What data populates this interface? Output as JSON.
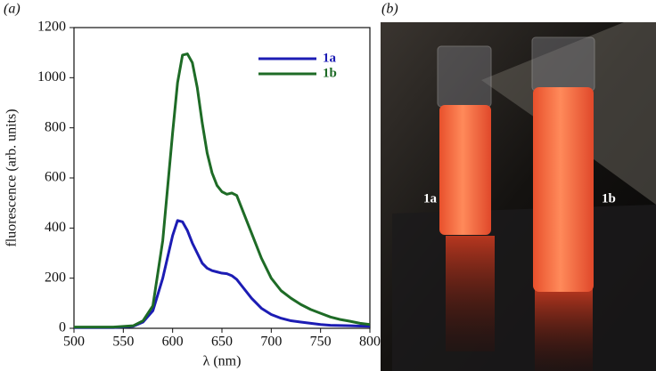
{
  "panels": {
    "a": "(a)",
    "b": "(b)"
  },
  "chart_data": {
    "type": "line",
    "xlabel": "λ (nm)",
    "ylabel": "fluorescence (arb. units)",
    "x": [
      500,
      540,
      560,
      570,
      580,
      590,
      600,
      605,
      610,
      615,
      620,
      625,
      630,
      635,
      640,
      645,
      650,
      655,
      660,
      665,
      670,
      680,
      690,
      700,
      710,
      720,
      730,
      740,
      750,
      760,
      770,
      780,
      790,
      800
    ],
    "series": [
      {
        "name": "1a",
        "color": "#1c1cb4",
        "values": [
          3,
          3,
          8,
          25,
          70,
          200,
          370,
          430,
          425,
          390,
          340,
          300,
          260,
          240,
          230,
          225,
          220,
          218,
          210,
          195,
          170,
          120,
          80,
          55,
          40,
          30,
          25,
          20,
          15,
          12,
          11,
          10,
          9,
          8
        ]
      },
      {
        "name": "1b",
        "color": "#1e6b26",
        "values": [
          5,
          5,
          10,
          30,
          90,
          350,
          780,
          980,
          1090,
          1095,
          1060,
          960,
          820,
          700,
          620,
          570,
          545,
          535,
          540,
          530,
          480,
          380,
          280,
          200,
          150,
          120,
          95,
          75,
          60,
          45,
          35,
          28,
          20,
          15
        ]
      }
    ],
    "xlim": [
      500,
      800
    ],
    "xticks": [
      500,
      550,
      600,
      650,
      700,
      750,
      800
    ],
    "ylim": [
      0,
      1200
    ],
    "yticks": [
      0,
      200,
      400,
      600,
      800,
      1000,
      1200
    ],
    "legend": "upper right"
  },
  "photo": {
    "labels": [
      "1a",
      "1b"
    ]
  }
}
